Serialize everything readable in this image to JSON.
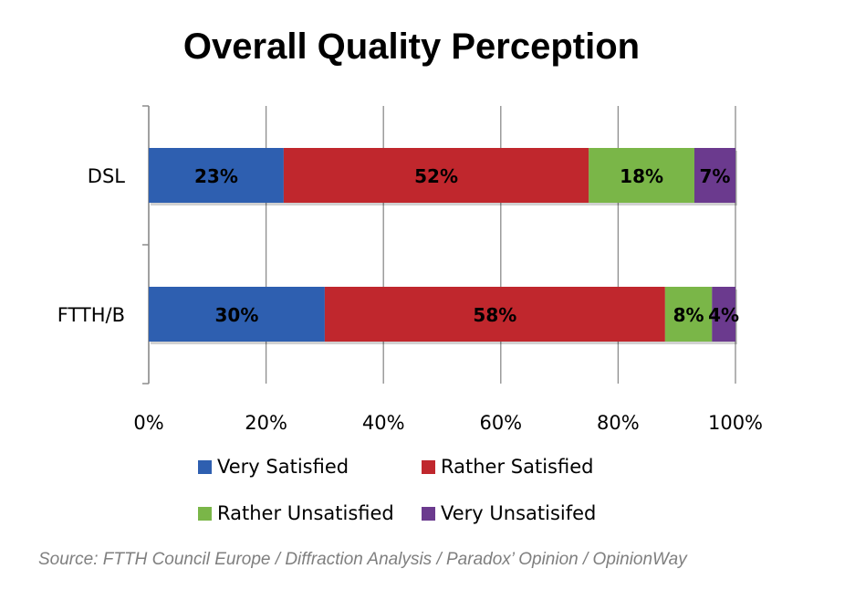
{
  "chart_data": {
    "type": "bar",
    "orientation": "horizontal",
    "stacked": "percent",
    "title": "Overall Quality Perception",
    "categories": [
      "DSL",
      "FTTH/B"
    ],
    "series": [
      {
        "name": "Very Satisfied",
        "color": "#2e5fb0",
        "values": [
          23,
          30
        ],
        "labels": [
          "23%",
          "30%"
        ]
      },
      {
        "name": "Rather Satisfied",
        "color": "#c0272d",
        "values": [
          52,
          58
        ],
        "labels": [
          "52%",
          "58%"
        ]
      },
      {
        "name": "Rather Unsatisfied",
        "color": "#7ab648",
        "values": [
          18,
          8
        ],
        "labels": [
          "18%",
          "8%"
        ]
      },
      {
        "name": "Very Unsatisifed",
        "color": "#6b3a8e",
        "values": [
          7,
          4
        ],
        "labels": [
          "7%",
          "4%"
        ]
      }
    ],
    "xlim": [
      0,
      100
    ],
    "xticks": [
      "0%",
      "20%",
      "40%",
      "60%",
      "80%",
      "100%"
    ],
    "grid": true,
    "legend": "bottom",
    "source": "Source: FTTH Council Europe / Diffraction Analysis / Paradox’ Opinion / OpinionWay"
  }
}
